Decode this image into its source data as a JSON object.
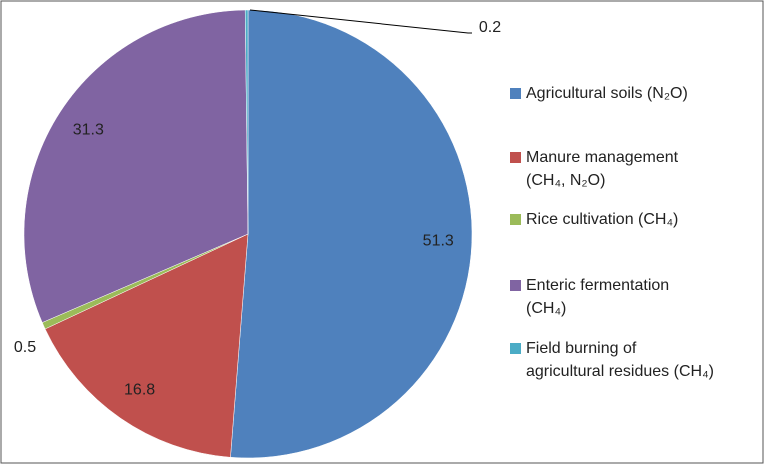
{
  "chart_data": {
    "type": "pie",
    "series": [
      {
        "name": "Agricultural soils (N₂O)",
        "color": "#4f81bd",
        "values": [
          51.3
        ]
      },
      {
        "name": "Manure management\n(CH₄, N₂O)",
        "color": "#c0504d",
        "values": [
          16.8
        ]
      },
      {
        "name": "Rice cultivation (CH₄)",
        "color": "#9bbb59",
        "values": [
          0.5
        ]
      },
      {
        "name": "Enteric fermentation\n(CH₄)",
        "color": "#8064a2",
        "values": [
          31.3
        ]
      },
      {
        "name": "Field burning of\nagricultural residues (CH₄)",
        "color": "#4bacc6",
        "values": [
          0.2
        ]
      }
    ],
    "legend": "right"
  }
}
